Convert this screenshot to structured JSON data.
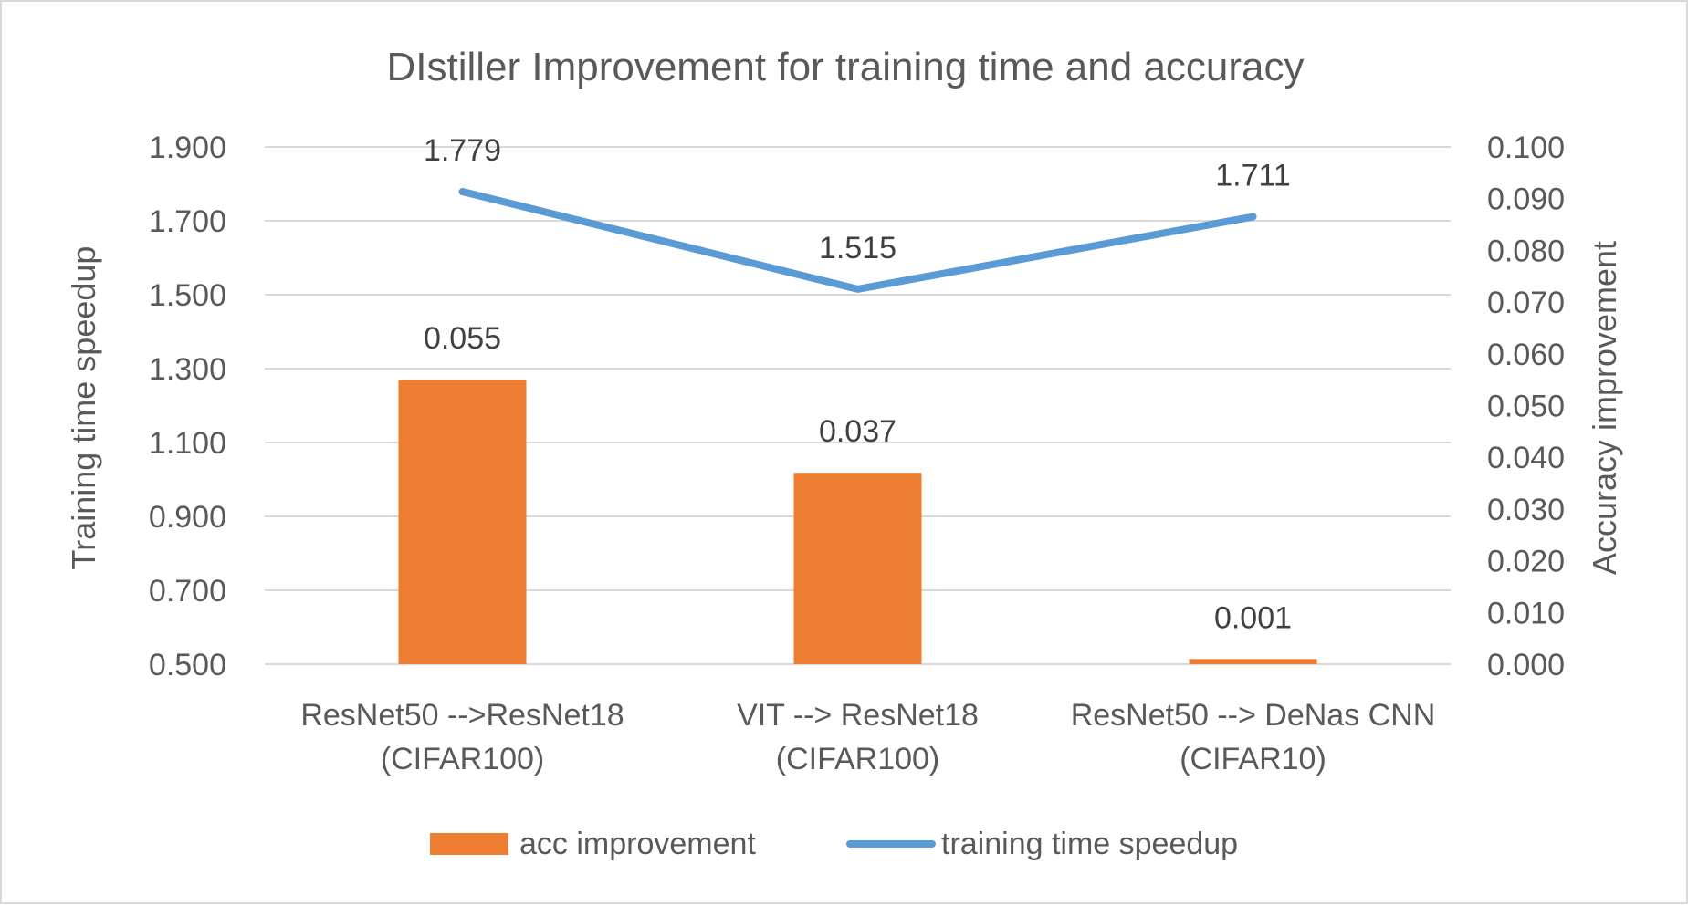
{
  "chart_data": {
    "type": "bar",
    "title": "DIstiller Improvement  for training time and accuracy",
    "categories": [
      [
        "ResNet50 -->ResNet18",
        "(CIFAR100)"
      ],
      [
        "VIT --> ResNet18",
        "(CIFAR100)"
      ],
      [
        "ResNet50 --> DeNas CNN",
        "(CIFAR10)"
      ]
    ],
    "y_left": {
      "label": "Training time speedup",
      "ylim": [
        0.5,
        1.9
      ],
      "ticks": [
        "0.500",
        "0.700",
        "0.900",
        "1.100",
        "1.300",
        "1.500",
        "1.700",
        "1.900"
      ]
    },
    "y_right": {
      "label": "Accuracy improvement",
      "ylim": [
        0.0,
        0.1
      ],
      "ticks": [
        "0.000",
        "0.010",
        "0.020",
        "0.030",
        "0.040",
        "0.050",
        "0.060",
        "0.070",
        "0.080",
        "0.090",
        "0.100"
      ]
    },
    "series": [
      {
        "name": "acc improvement",
        "type": "bar",
        "axis": "right",
        "color": "#ED7D31",
        "values": [
          0.055,
          0.037,
          0.001
        ],
        "labels": [
          "0.055",
          "0.037",
          "0.001"
        ]
      },
      {
        "name": "training time speedup",
        "type": "line",
        "axis": "left",
        "color": "#5B9BD5",
        "values": [
          1.779,
          1.515,
          1.711
        ],
        "labels": [
          "1.779",
          "1.515",
          "1.711"
        ]
      }
    ],
    "grid": true,
    "gridline_color": "#d9d9d9",
    "legend": "bottom"
  }
}
